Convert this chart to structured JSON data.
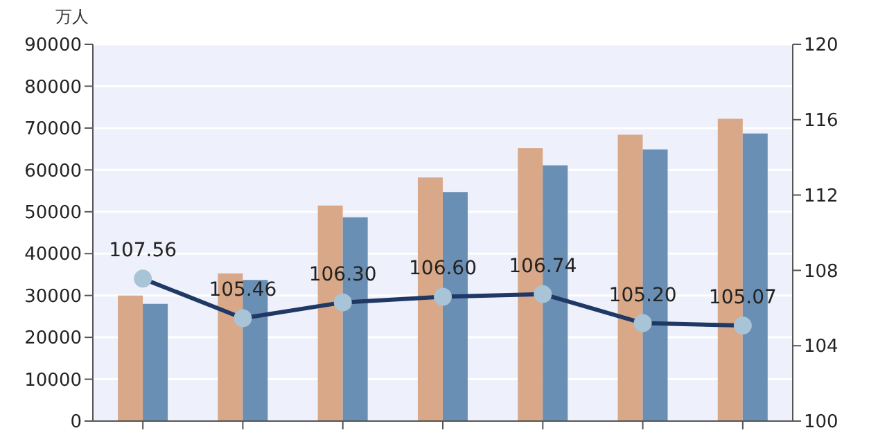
{
  "chart_data": {
    "type": "bar",
    "ylabel": "万人",
    "categories": [
      null,
      null,
      null,
      null,
      null,
      null,
      null
    ],
    "series": [
      {
        "color": "#d9a888",
        "values": [
          30000,
          35300,
          51500,
          58200,
          65200,
          68400,
          72200
        ]
      },
      {
        "color": "#6a8fb4",
        "values": [
          28000,
          33700,
          48700,
          54700,
          61100,
          64900,
          68700
        ]
      },
      {
        "type": "line",
        "axis": "y2",
        "color": "#1f3864",
        "values": [
          107.56,
          105.46,
          106.3,
          106.6,
          106.74,
          105.2,
          105.07
        ],
        "value_labels": [
          "107.56",
          "105.46",
          "106.30",
          "106.60",
          "106.74",
          "105.20",
          "105.07"
        ],
        "marker": "circle"
      }
    ],
    "ylim": [
      0,
      90000
    ],
    "yticks": [
      0,
      10000,
      20000,
      30000,
      40000,
      50000,
      60000,
      70000,
      80000,
      90000
    ],
    "y2lim": [
      100,
      120
    ],
    "y2ticks": [
      100,
      104,
      108,
      112,
      116,
      120
    ],
    "grid": "y",
    "legend": false
  }
}
